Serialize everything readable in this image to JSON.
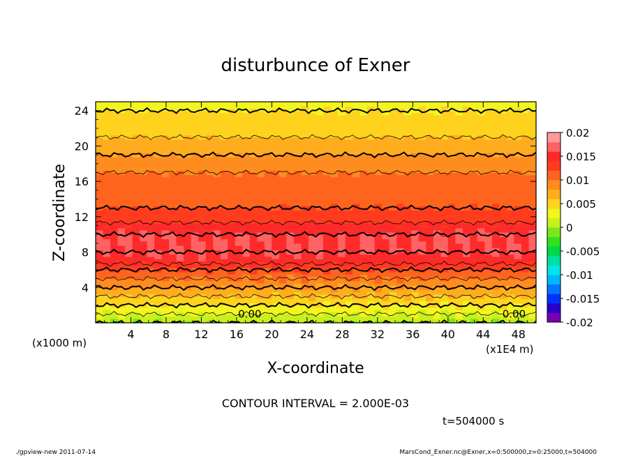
{
  "chart_data": {
    "type": "heatmap",
    "title": "disturbunce of Exner",
    "xlabel": "X-coordinate",
    "ylabel": "Z-coordinate",
    "x_unit": "(x1E4 m)",
    "y_unit": "(x1000 m)",
    "xlim": [
      0,
      50
    ],
    "ylim": [
      0,
      25
    ],
    "x_ticks": [
      "4",
      "8",
      "12",
      "16",
      "20",
      "24",
      "28",
      "32",
      "36",
      "40",
      "44",
      "48"
    ],
    "y_ticks": [
      "4",
      "8",
      "12",
      "16",
      "20",
      "24"
    ],
    "colorbar": {
      "min": -0.02,
      "max": 0.02,
      "tick_labels": [
        "0.02",
        "0.015",
        "0.01",
        "0.005",
        "0",
        "-0.005",
        "-0.01",
        "-0.015",
        "-0.02"
      ],
      "colors": [
        "#7a00b0",
        "#2a00c8",
        "#0033ff",
        "#0077ff",
        "#00b6ff",
        "#00e5e5",
        "#00e0a0",
        "#00d84a",
        "#2ee21e",
        "#7ae61e",
        "#c8ef1e",
        "#f3f51e",
        "#ffd21e",
        "#ffad1e",
        "#ff8c1e",
        "#ff641e",
        "#ff3c1e",
        "#ff2a2a",
        "#ff6262",
        "#ff9a9a"
      ]
    },
    "contour_interval_text": "CONTOUR INTERVAL = 2.000E-03",
    "contour_labels": [
      "0.00",
      "0.00"
    ],
    "profile": {
      "z": [
        0,
        1,
        2,
        3,
        4,
        5,
        6,
        7,
        8,
        9,
        10,
        11,
        12,
        13,
        14,
        15,
        16,
        17,
        18,
        19,
        20,
        21,
        22,
        23,
        24,
        25
      ],
      "value": [
        0.0,
        0.002,
        0.004,
        0.006,
        0.008,
        0.01,
        0.012,
        0.015,
        0.016,
        0.016,
        0.016,
        0.0145,
        0.013,
        0.012,
        0.0115,
        0.011,
        0.0105,
        0.01,
        0.009,
        0.008,
        0.007,
        0.006,
        0.005,
        0.0045,
        0.004,
        0.0035
      ]
    },
    "time_label": "t=504000 s"
  },
  "footer": {
    "left": "./gpview-new   2011-07-14",
    "right": "MarsCond_Exner.nc@Exner,x=0:500000,z=0:25000,t=504000"
  }
}
